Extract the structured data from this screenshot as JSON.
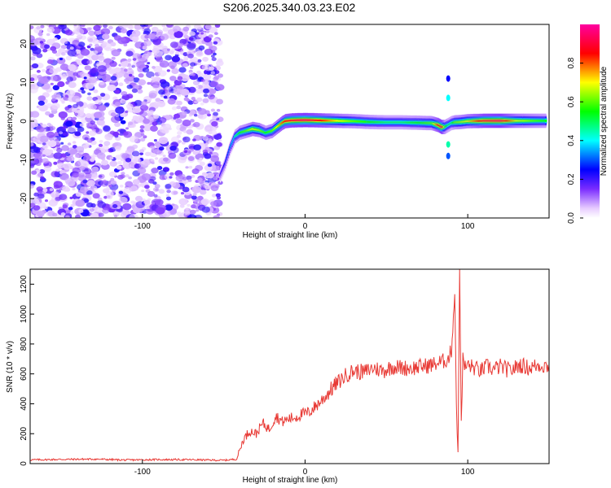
{
  "title": "S206.2025.340.03.23.E02",
  "chart_data": [
    {
      "type": "heatmap",
      "name": "spectrogram",
      "xlabel": "Height of straight line (km)",
      "ylabel": "Frequency (Hz)",
      "xlim": [
        -169,
        150
      ],
      "ylim": [
        -25,
        25
      ],
      "xticks": [
        -100,
        0,
        100
      ],
      "xtick_labels": [
        "-100",
        "0",
        "100"
      ],
      "yticks": [
        -20,
        -10,
        0,
        10,
        20
      ],
      "ytick_labels": [
        "-20",
        "-10",
        "0",
        "10",
        "20"
      ],
      "colorbar": {
        "label": "Normalized spectral amplitude",
        "range": [
          0.0,
          1.0
        ],
        "ticks": [
          0.0,
          0.2,
          0.4,
          0.6,
          0.8
        ],
        "tick_labels": [
          "0.0",
          "0.2",
          "0.4",
          "0.6",
          "0.8"
        ]
      },
      "noise_region_km": [
        -169,
        -52
      ],
      "ridge": {
        "x": [
          -52,
          -49,
          -46,
          -43,
          -40,
          -36,
          -32,
          -28,
          -24,
          -20,
          -17,
          -14,
          -12,
          -8,
          0,
          10,
          20,
          30,
          40,
          50,
          60,
          70,
          78,
          82,
          84,
          86,
          88,
          90,
          92,
          96,
          100,
          110,
          120,
          130,
          140,
          148
        ],
        "freq": [
          -14,
          -11,
          -7,
          -4,
          -3,
          -2.5,
          -2,
          -2.3,
          -3,
          -2.5,
          -1.5,
          -0.5,
          0,
          0.2,
          0.3,
          0.2,
          0.1,
          0,
          -0.2,
          -0.3,
          -0.3,
          -0.4,
          -0.5,
          -1,
          -1.5,
          -1.5,
          -1,
          -0.5,
          -0.3,
          -0.2,
          0,
          0.1,
          0.1,
          0.1,
          0.1,
          0.1
        ],
        "amplitude": [
          0.2,
          0.25,
          0.35,
          0.45,
          0.55,
          0.6,
          0.7,
          0.65,
          0.55,
          0.6,
          0.7,
          0.8,
          0.85,
          0.9,
          0.95,
          0.85,
          0.7,
          0.6,
          0.55,
          0.5,
          0.5,
          0.55,
          0.6,
          0.85,
          0.95,
          0.6,
          0.5,
          0.5,
          0.6,
          0.65,
          0.7,
          0.9,
          0.95,
          0.7,
          0.6,
          0.55
        ]
      }
    },
    {
      "type": "line",
      "name": "snr",
      "xlabel": "Height of straight line (km)",
      "ylabel": "SNR (10 * v/v)",
      "xlim": [
        -169,
        150
      ],
      "ylim": [
        0,
        1300
      ],
      "xticks": [
        -100,
        0,
        100
      ],
      "xtick_labels": [
        "-100",
        "0",
        "100"
      ],
      "yticks": [
        0,
        200,
        400,
        600,
        800,
        1000,
        1200
      ],
      "ytick_labels": [
        "0",
        "200",
        "400",
        "600",
        "800",
        "1000",
        "1200"
      ],
      "color": "#e83a35",
      "series": [
        {
          "name": "SNR",
          "x": [
            -169,
            -150,
            -130,
            -110,
            -90,
            -70,
            -50,
            -42,
            -38,
            -34,
            -30,
            -26,
            -22,
            -18,
            -14,
            -10,
            -6,
            -2,
            2,
            6,
            10,
            14,
            18,
            22,
            26,
            30,
            36,
            42,
            48,
            54,
            60,
            66,
            72,
            78,
            84,
            88,
            90,
            92,
            93,
            94,
            95,
            96,
            97,
            98,
            100,
            104,
            108,
            112,
            116,
            120,
            126,
            132,
            138,
            144,
            150
          ],
          "y": [
            25,
            28,
            30,
            24,
            27,
            26,
            22,
            30,
            160,
            220,
            200,
            270,
            230,
            320,
            280,
            300,
            310,
            330,
            340,
            380,
            420,
            470,
            520,
            560,
            600,
            620,
            610,
            640,
            620,
            650,
            640,
            640,
            650,
            660,
            680,
            700,
            760,
            1150,
            400,
            60,
            1300,
            300,
            700,
            640,
            660,
            640,
            620,
            650,
            630,
            650,
            620,
            660,
            640,
            660,
            650
          ]
        }
      ]
    }
  ]
}
